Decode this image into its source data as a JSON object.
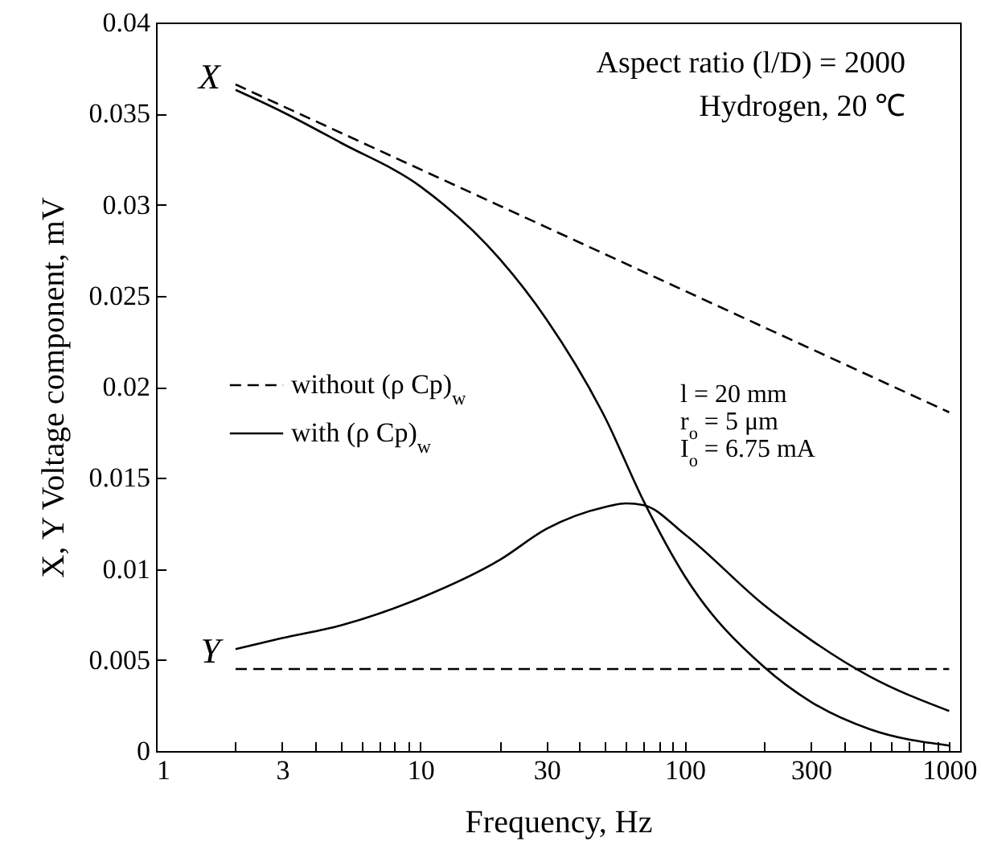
{
  "chart_data": {
    "type": "line",
    "xlabel": "Frequency, Hz",
    "ylabel": "X, Y Voltage component, mV",
    "log": "x",
    "xlim": [
      1,
      1100
    ],
    "ylim": [
      0,
      0.04
    ],
    "xticks": [
      1,
      {
        "value": 2,
        "label": null
      },
      3,
      {
        "value": 4,
        "label": null
      },
      {
        "value": 5,
        "label": null
      },
      {
        "value": 6,
        "label": null
      },
      {
        "value": 7,
        "label": null
      },
      {
        "value": 8,
        "label": null
      },
      {
        "value": 9,
        "label": null
      },
      10,
      {
        "value": 20,
        "label": null
      },
      30,
      {
        "value": 40,
        "label": null
      },
      {
        "value": 50,
        "label": null
      },
      {
        "value": 60,
        "label": null
      },
      {
        "value": 70,
        "label": null
      },
      {
        "value": 80,
        "label": null
      },
      {
        "value": 90,
        "label": null
      },
      100,
      {
        "value": 200,
        "label": null
      },
      300,
      {
        "value": 400,
        "label": null
      },
      {
        "value": 500,
        "label": null
      },
      {
        "value": 600,
        "label": null
      },
      {
        "value": 700,
        "label": null
      },
      {
        "value": 800,
        "label": null
      },
      {
        "value": 900,
        "label": null
      },
      1000
    ],
    "yticks": [
      0,
      0.005,
      0.01,
      0.015,
      0.02,
      0.025,
      0.03,
      0.035,
      0.04
    ],
    "grid": false,
    "legend": "left",
    "marker": "none",
    "series": [
      {
        "name": "without (ρ  Cp)$_{w}$",
        "color": "#000000",
        "line_style": "dashed",
        "x": [
          2,
          1000
        ],
        "values": [
          0.0366,
          0.0186
        ]
      },
      {
        "color": "#000000",
        "line_style": "dashed",
        "x": [
          2,
          1000
        ],
        "values": [
          0.0045,
          0.0045
        ]
      },
      {
        "name": "with (ρ  Cp)$_{w}$",
        "color": "#000000",
        "line_style": "solid",
        "x": [
          2,
          3,
          5,
          10,
          20,
          30,
          50,
          70,
          100,
          200,
          300,
          500,
          1000
        ],
        "values": [
          0.0363,
          0.0351,
          0.0334,
          0.031,
          0.027,
          0.0237,
          0.0183,
          0.0137,
          0.0096,
          0.0046,
          0.0027,
          0.0012,
          0.0003
        ]
      },
      {
        "color": "#000000",
        "line_style": "solid",
        "x": [
          2,
          3,
          5,
          10,
          20,
          30,
          50,
          60,
          70,
          100,
          200,
          300,
          500,
          1000
        ],
        "values": [
          0.0056,
          0.0062,
          0.0069,
          0.0084,
          0.0105,
          0.0122,
          0.0134,
          0.0136,
          0.0135,
          0.0119,
          0.008,
          0.0061,
          0.0041,
          0.0022
        ]
      }
    ],
    "annotations": [
      "X",
      "Y",
      "Aspect ratio (l/D) = 2000",
      "Hydrogen, 20 ℃",
      "l = 20 mm",
      "r$_{o}$ = 5 μm",
      "I$_{o}$ = 6.75 mA"
    ]
  }
}
